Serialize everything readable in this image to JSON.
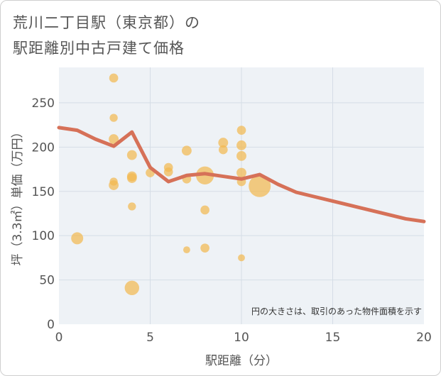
{
  "title_lines": [
    "荒川二丁目駅（東京都）の",
    "駅距離別中古戸建て価格"
  ],
  "note": "円の大きさは、取引のあった物件面積を示す",
  "chart_data": {
    "type": "scatter",
    "xlabel": "駅距離（分）",
    "ylabel": "坪（3.3㎡）単価（万円）",
    "xlim": [
      0,
      20
    ],
    "ylim": [
      0,
      290
    ],
    "xticks": [
      0,
      5,
      10,
      15,
      20
    ],
    "yticks": [
      0,
      50,
      100,
      150,
      200,
      250
    ],
    "grid": true,
    "colors": {
      "bubble": "#f2b950",
      "line": "#d67158",
      "grid": "#d5dde6",
      "plot_bg": "#eef2f6"
    },
    "bubbles": [
      {
        "x": 1,
        "y": 97,
        "size": 4.5
      },
      {
        "x": 3,
        "y": 278,
        "size": 2.5
      },
      {
        "x": 3,
        "y": 233,
        "size": 2
      },
      {
        "x": 3,
        "y": 209,
        "size": 3
      },
      {
        "x": 3,
        "y": 161,
        "size": 2
      },
      {
        "x": 3,
        "y": 157,
        "size": 3
      },
      {
        "x": 4,
        "y": 191,
        "size": 3
      },
      {
        "x": 4,
        "y": 167,
        "size": 3
      },
      {
        "x": 4,
        "y": 165,
        "size": 3
      },
      {
        "x": 4,
        "y": 133,
        "size": 2
      },
      {
        "x": 4,
        "y": 41,
        "size": 6.5
      },
      {
        "x": 5,
        "y": 171,
        "size": 2.5
      },
      {
        "x": 6,
        "y": 177,
        "size": 2.5
      },
      {
        "x": 6,
        "y": 172,
        "size": 2.5
      },
      {
        "x": 7,
        "y": 196,
        "size": 3
      },
      {
        "x": 7,
        "y": 164,
        "size": 2.5
      },
      {
        "x": 7,
        "y": 84,
        "size": 1.5
      },
      {
        "x": 8,
        "y": 168,
        "size": 10
      },
      {
        "x": 8,
        "y": 129,
        "size": 2.5
      },
      {
        "x": 8,
        "y": 86,
        "size": 2.5
      },
      {
        "x": 9,
        "y": 205,
        "size": 3
      },
      {
        "x": 9,
        "y": 197,
        "size": 2.5
      },
      {
        "x": 10,
        "y": 219,
        "size": 2.5
      },
      {
        "x": 10,
        "y": 202,
        "size": 3
      },
      {
        "x": 10,
        "y": 190,
        "size": 3
      },
      {
        "x": 10,
        "y": 171,
        "size": 3
      },
      {
        "x": 10,
        "y": 161,
        "size": 2.5
      },
      {
        "x": 10,
        "y": 75,
        "size": 1.5
      },
      {
        "x": 11,
        "y": 156,
        "size": 15
      }
    ],
    "series": [
      {
        "x": [
          0,
          1,
          2,
          3,
          4,
          5,
          6,
          7,
          8,
          9,
          10,
          11,
          12,
          13,
          14,
          15,
          16,
          17,
          18,
          19,
          20
        ],
        "values": [
          222,
          219,
          209,
          201,
          217,
          177,
          161,
          168,
          170,
          167,
          164,
          169,
          158,
          149,
          144,
          139,
          134,
          129,
          124,
          119,
          116
        ]
      }
    ]
  }
}
